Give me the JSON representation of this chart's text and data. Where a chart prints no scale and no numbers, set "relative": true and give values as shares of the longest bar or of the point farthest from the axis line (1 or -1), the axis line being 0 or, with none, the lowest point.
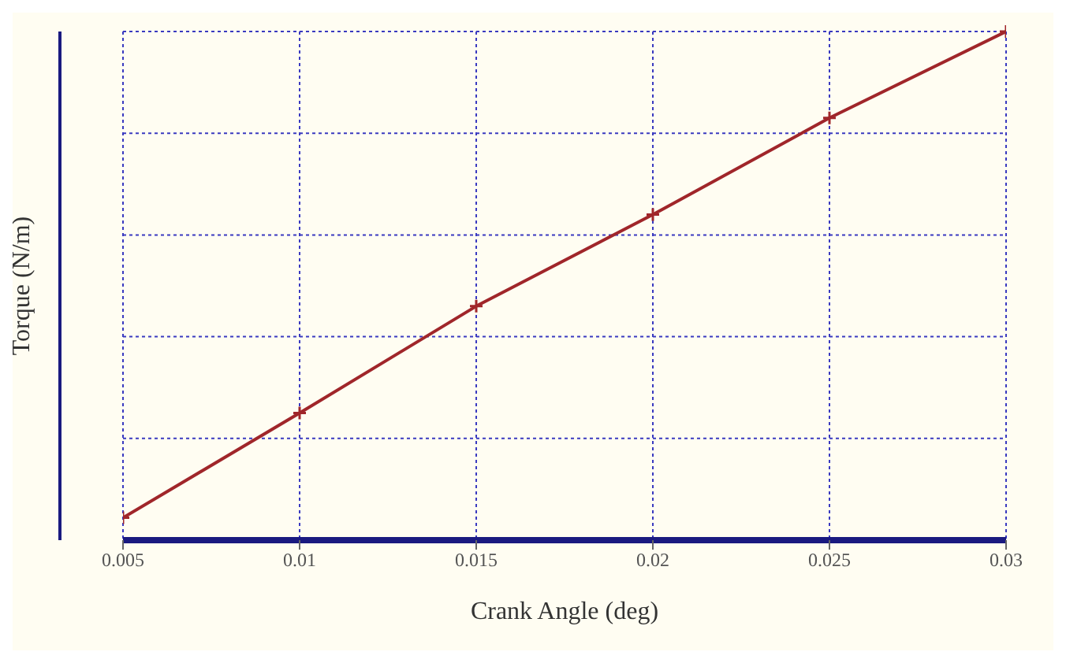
{
  "chart_data": {
    "type": "line",
    "xlabel": "Crank Angle (deg)",
    "ylabel": "Torque (N/m)",
    "x": [
      0.005,
      0.01,
      0.015,
      0.02,
      0.025,
      0.03
    ],
    "xlim": [
      0.005,
      0.03
    ],
    "xticks": [
      0.005,
      0.01,
      0.015,
      0.02,
      0.025,
      0.03
    ],
    "series": [
      {
        "color": "#a0262a",
        "values": [
          0.044,
          0.25,
          0.46,
          0.64,
          0.83,
          1
        ]
      }
    ],
    "relative": true,
    "grid": true,
    "marker": "cross",
    "line_style": "solid"
  }
}
